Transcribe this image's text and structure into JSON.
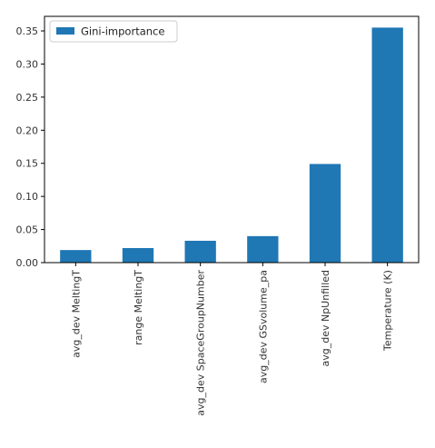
{
  "chart_data": {
    "type": "bar",
    "categories": [
      "avg_dev MeltingT",
      "range MeltingT",
      "avg_dev SpaceGroupNumber",
      "avg_dev GSvolume_pa",
      "avg_dev NpUnfilled",
      "Temperature (K)"
    ],
    "series": [
      {
        "name": "Gini-importance",
        "values": [
          0.019,
          0.022,
          0.033,
          0.04,
          0.149,
          0.355
        ],
        "color": "#1f77b4"
      }
    ],
    "yticks": [
      "0.00",
      "0.05",
      "0.10",
      "0.15",
      "0.20",
      "0.25",
      "0.30",
      "0.35"
    ],
    "ylim": [
      0,
      0.372
    ],
    "grid": false,
    "legend": "upper-left",
    "title": "",
    "xlabel": "",
    "ylabel": ""
  }
}
